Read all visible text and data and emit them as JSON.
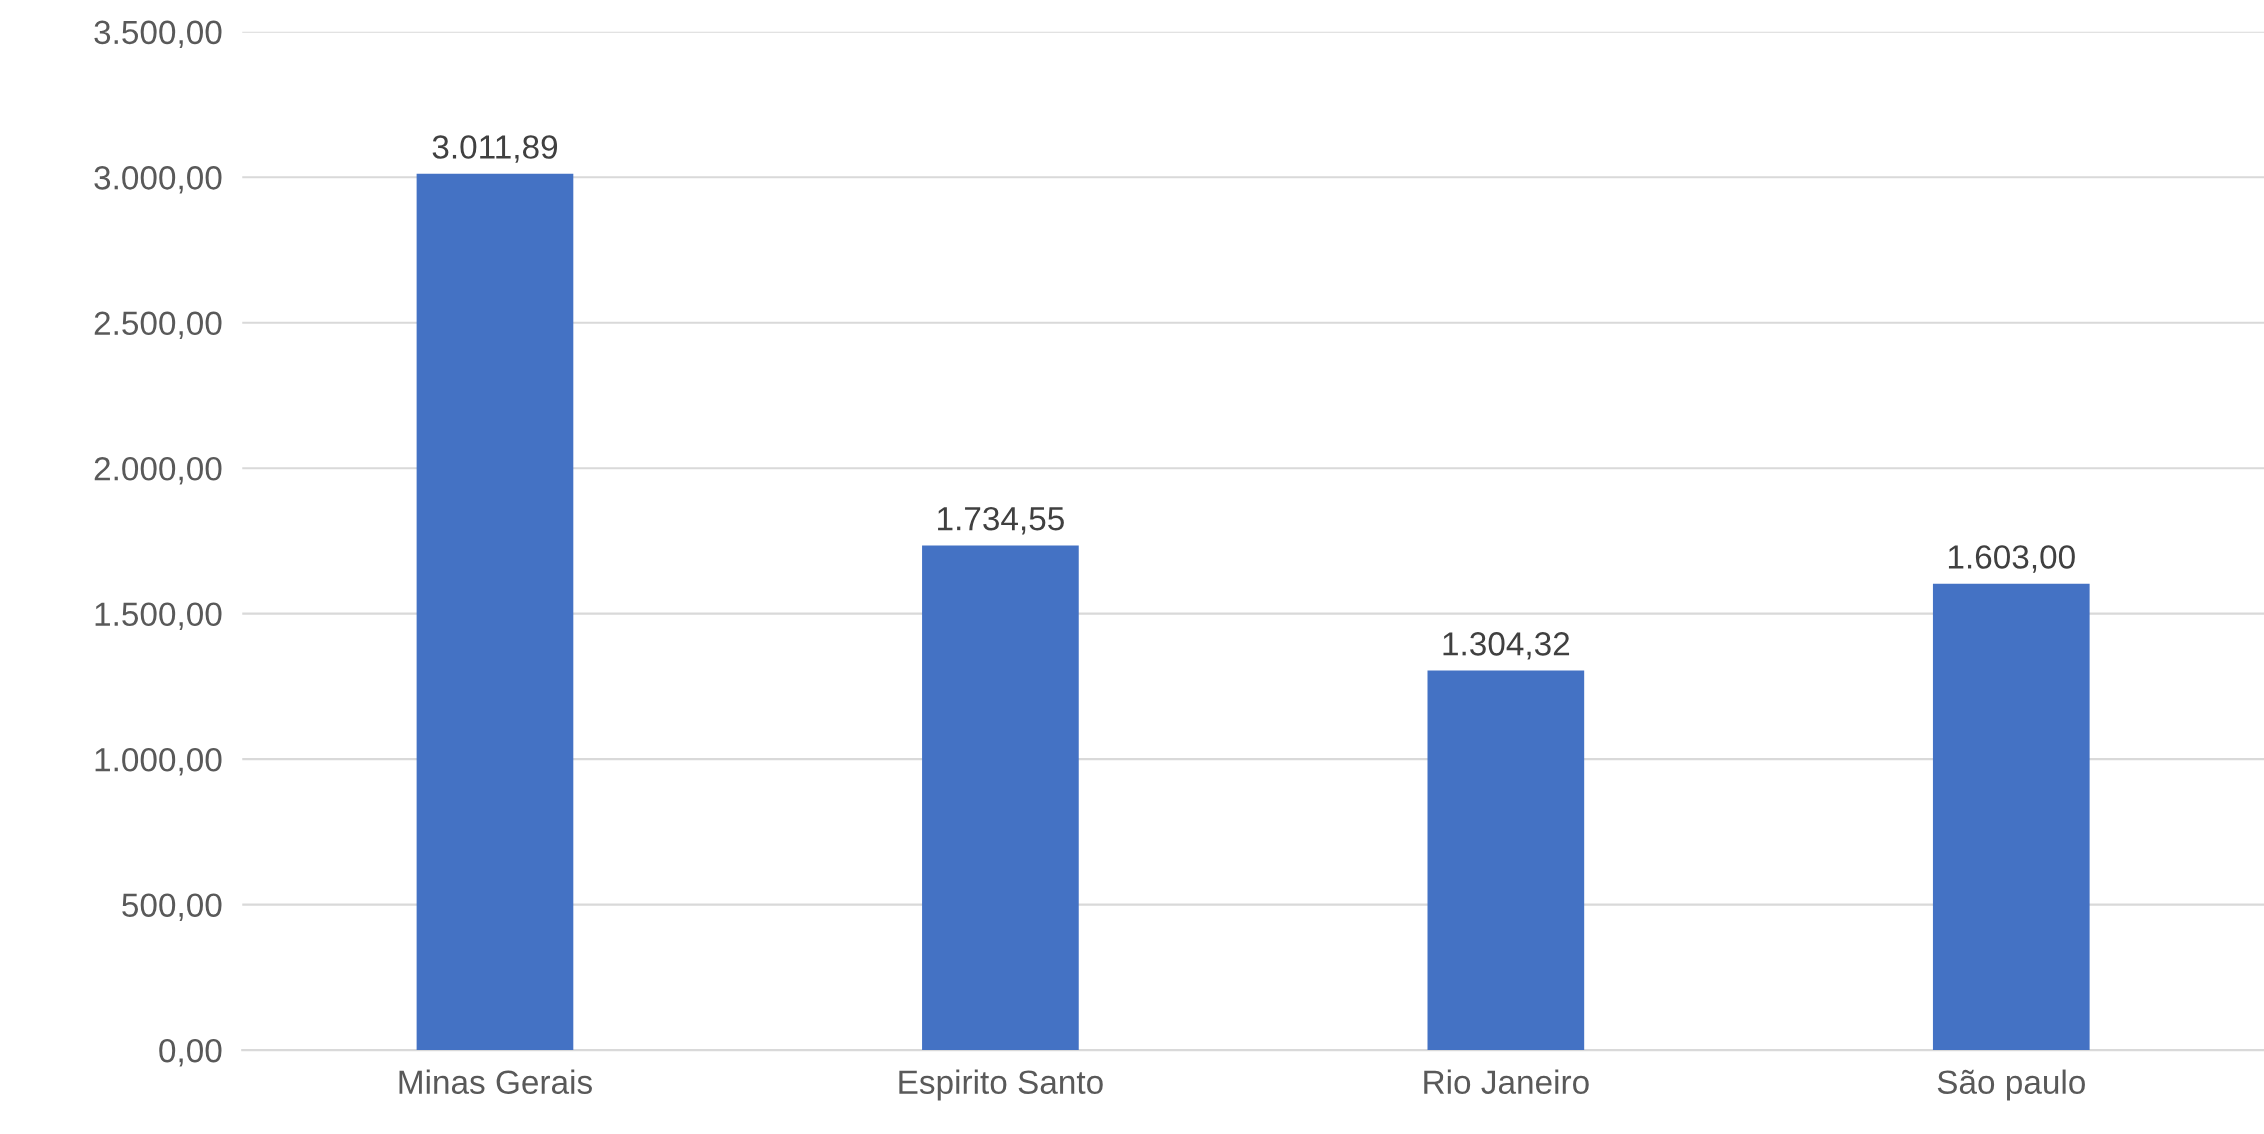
{
  "chart_data": {
    "type": "bar",
    "categories": [
      "Minas Gerais",
      "Espirito Santo",
      "Rio Janeiro",
      "São paulo"
    ],
    "values": [
      3011.89,
      1734.55,
      1304.32,
      1603.0
    ],
    "value_labels": [
      "3.011,89",
      "1.734,55",
      "1.304,32",
      "1.603,00"
    ],
    "color": "#4472c4",
    "ylim": [
      0,
      3500
    ],
    "yticks": [
      {
        "value": 0,
        "label": "0,00"
      },
      {
        "value": 500,
        "label": "500,00"
      },
      {
        "value": 1000,
        "label": "1.000,00"
      },
      {
        "value": 1500,
        "label": "1.500,00"
      },
      {
        "value": 2000,
        "label": "2.000,00"
      },
      {
        "value": 2500,
        "label": "2.500,00"
      },
      {
        "value": 3000,
        "label": "3.000,00"
      },
      {
        "value": 3500,
        "label": "3.500,00"
      }
    ],
    "grid": "y",
    "legend": false
  }
}
